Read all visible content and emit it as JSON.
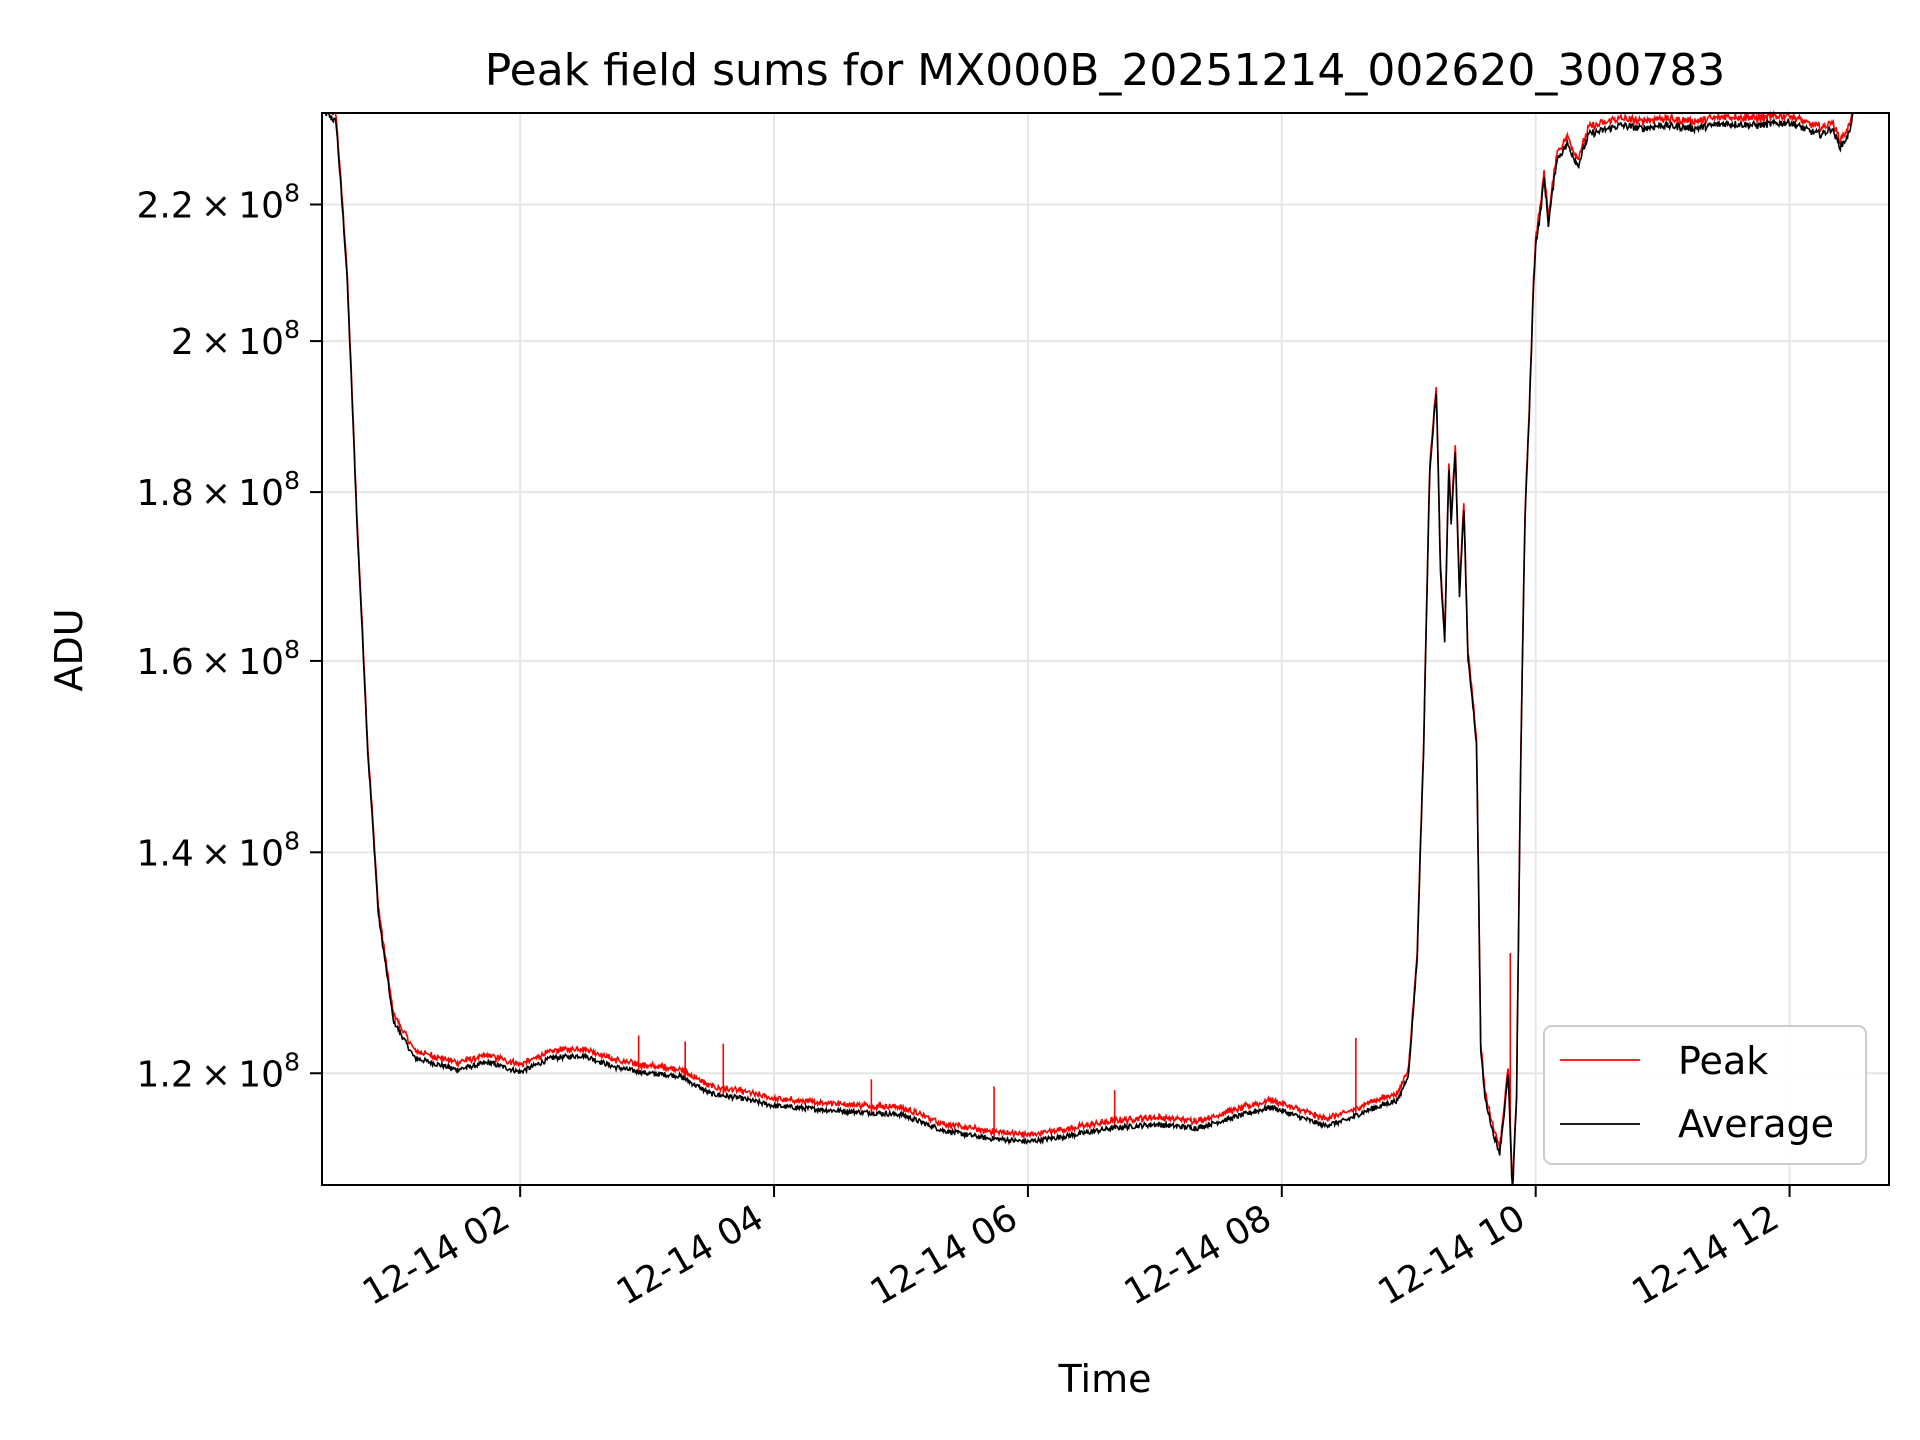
{
  "chart_data": {
    "type": "line",
    "title": "Peak field sums for MX000B_20251214_002620_300783",
    "xlabel": "Time",
    "ylabel": "ADU",
    "x_axis": {
      "kind": "datetime",
      "range": [
        "2025-12-14T00:26:20",
        "2025-12-14T12:47:00"
      ],
      "ticks": [
        {
          "value": "2025-12-14T02:00:00",
          "label": "12-14 02"
        },
        {
          "value": "2025-12-14T04:00:00",
          "label": "12-14 04"
        },
        {
          "value": "2025-12-14T06:00:00",
          "label": "12-14 06"
        },
        {
          "value": "2025-12-14T08:00:00",
          "label": "12-14 08"
        },
        {
          "value": "2025-12-14T10:00:00",
          "label": "12-14 10"
        },
        {
          "value": "2025-12-14T12:00:00",
          "label": "12-14 12"
        }
      ]
    },
    "y_axis": {
      "scale": "log",
      "range": [
        111000000,
        234500000
      ],
      "ticks": [
        {
          "value": 120000000,
          "mantissa": "1.2",
          "exponent": "8"
        },
        {
          "value": 140000000,
          "mantissa": "1.4",
          "exponent": "8"
        },
        {
          "value": 160000000,
          "mantissa": "1.6",
          "exponent": "8"
        },
        {
          "value": 180000000,
          "mantissa": "1.8",
          "exponent": "8"
        },
        {
          "value": 200000000,
          "mantissa": "2",
          "exponent": "8"
        },
        {
          "value": 220000000,
          "mantissa": "2.2",
          "exponent": "8"
        }
      ]
    },
    "grid": true,
    "legend": {
      "position": "lower-right"
    },
    "series": [
      {
        "name": "Average",
        "color": "#000000",
        "x": [
          "2025-12-14T00:26:20",
          "2025-12-14T00:33:00",
          "2025-12-14T00:38:00",
          "2025-12-14T00:43:00",
          "2025-12-14T00:48:00",
          "2025-12-14T00:53:00",
          "2025-12-14T01:00:00",
          "2025-12-14T01:10:00",
          "2025-12-14T01:20:00",
          "2025-12-14T01:30:00",
          "2025-12-14T01:45:00",
          "2025-12-14T02:00:00",
          "2025-12-14T02:15:00",
          "2025-12-14T02:30:00",
          "2025-12-14T02:45:00",
          "2025-12-14T03:00:00",
          "2025-12-14T03:15:00",
          "2025-12-14T03:30:00",
          "2025-12-14T03:45:00",
          "2025-12-14T04:00:00",
          "2025-12-14T04:30:00",
          "2025-12-14T05:00:00",
          "2025-12-14T05:20:00",
          "2025-12-14T05:40:00",
          "2025-12-14T06:00:00",
          "2025-12-14T06:20:00",
          "2025-12-14T06:40:00",
          "2025-12-14T07:00:00",
          "2025-12-14T07:20:00",
          "2025-12-14T07:40:00",
          "2025-12-14T07:55:00",
          "2025-12-14T08:10:00",
          "2025-12-14T08:20:00",
          "2025-12-14T08:30:00",
          "2025-12-14T08:40:00",
          "2025-12-14T08:55:00",
          "2025-12-14T09:00:00",
          "2025-12-14T09:04:00",
          "2025-12-14T09:07:00",
          "2025-12-14T09:10:00",
          "2025-12-14T09:13:00",
          "2025-12-14T09:15:00",
          "2025-12-14T09:17:00",
          "2025-12-14T09:19:00",
          "2025-12-14T09:20:00",
          "2025-12-14T09:22:00",
          "2025-12-14T09:24:00",
          "2025-12-14T09:26:00",
          "2025-12-14T09:28:00",
          "2025-12-14T09:30:00",
          "2025-12-14T09:32:00",
          "2025-12-14T09:34:00",
          "2025-12-14T09:36:00",
          "2025-12-14T09:40:00",
          "2025-12-14T09:43:00",
          "2025-12-14T09:45:00",
          "2025-12-14T09:47:00",
          "2025-12-14T09:49:00",
          "2025-12-14T09:51:00",
          "2025-12-14T09:53:00",
          "2025-12-14T09:55:00",
          "2025-12-14T09:57:00",
          "2025-12-14T09:59:00",
          "2025-12-14T10:00:00",
          "2025-12-14T10:02:00",
          "2025-12-14T10:04:00",
          "2025-12-14T10:06:00",
          "2025-12-14T10:10:00",
          "2025-12-14T10:15:00",
          "2025-12-14T10:20:00",
          "2025-12-14T10:25:00",
          "2025-12-14T10:30:00",
          "2025-12-14T10:40:00",
          "2025-12-14T10:50:00",
          "2025-12-14T11:00:00",
          "2025-12-14T11:15:00",
          "2025-12-14T11:30:00",
          "2025-12-14T11:45:00",
          "2025-12-14T12:00:00",
          "2025-12-14T12:10:00",
          "2025-12-14T12:15:00",
          "2025-12-14T12:20:00",
          "2025-12-14T12:24:00",
          "2025-12-14T12:28:00",
          "2025-12-14T12:30:00"
        ],
        "values": [
          235000000,
          233000000,
          210000000,
          175000000,
          150000000,
          134000000,
          124500000,
          121300000,
          120800000,
          120300000,
          120900000,
          120100000,
          121300000,
          121500000,
          120500000,
          120000000,
          119800000,
          118300000,
          117900000,
          117300000,
          116900000,
          116600000,
          115300000,
          114700000,
          114400000,
          114900000,
          115500000,
          115800000,
          115500000,
          116500000,
          117200000,
          116300000,
          115700000,
          116100000,
          116900000,
          117800000,
          120000000,
          130000000,
          150000000,
          183000000,
          193000000,
          170000000,
          162000000,
          183000000,
          176000000,
          185000000,
          167000000,
          178000000,
          160000000,
          156000000,
          151000000,
          122000000,
          118000000,
          115000000,
          113500000,
          116500000,
          120000000,
          110000000,
          118000000,
          150000000,
          177000000,
          190000000,
          208000000,
          214000000,
          218000000,
          224000000,
          217000000,
          227000000,
          229500000,
          226000000,
          231000000,
          231500000,
          232500000,
          232000000,
          232500000,
          232000000,
          232800000,
          232500000,
          233000000,
          231500000,
          231000000,
          232000000,
          229000000,
          231000000,
          234500000
        ]
      },
      {
        "name": "Peak",
        "color": "#ff0000",
        "note_spikes": [
          {
            "x": "2025-12-14T02:56:00",
            "y": 123200000
          },
          {
            "x": "2025-12-14T03:18:00",
            "y": 122700000
          },
          {
            "x": "2025-12-14T03:36:00",
            "y": 122500000
          },
          {
            "x": "2025-12-14T04:46:00",
            "y": 119500000
          },
          {
            "x": "2025-12-14T05:44:00",
            "y": 118900000
          },
          {
            "x": "2025-12-14T06:41:00",
            "y": 118600000
          },
          {
            "x": "2025-12-14T08:35:00",
            "y": 123000000
          },
          {
            "x": "2025-12-14T09:48:00",
            "y": 130500000
          }
        ],
        "values": []
      }
    ]
  }
}
